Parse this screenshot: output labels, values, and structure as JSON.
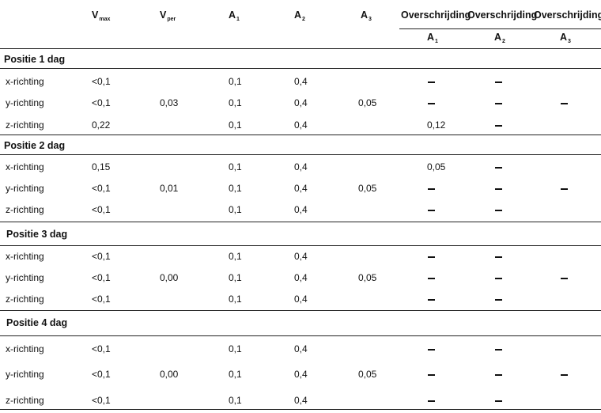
{
  "header": {
    "vmax": {
      "main": "V",
      "sub": "max"
    },
    "vper": {
      "main": "V",
      "sub": "per"
    },
    "a1": {
      "main": "A",
      "sub": "1"
    },
    "a2": {
      "main": "A",
      "sub": "2"
    },
    "a3": {
      "main": "A",
      "sub": "3"
    },
    "over1": "Overschrijding",
    "over2": "Overschrijding",
    "over3": "Overschrijding",
    "oa1": {
      "main": "A",
      "sub": "1"
    },
    "oa2": {
      "main": "A",
      "sub": "2"
    },
    "oa3": {
      "main": "A",
      "sub": "3"
    }
  },
  "sections": [
    {
      "title": "Positie 1 dag",
      "vper": "0,03",
      "a3": "0,05",
      "rows": [
        {
          "label": "x-richting",
          "vmax": "<0,1",
          "a1": "0,1",
          "a2": "0,4",
          "o1": "–",
          "o2": "–",
          "o3": ""
        },
        {
          "label": "y-richting",
          "vmax": "<0,1",
          "a1": "0,1",
          "a2": "0,4",
          "o1": "–",
          "o2": "–",
          "o3": "–"
        },
        {
          "label": "z-richting",
          "vmax": "0,22",
          "a1": "0,1",
          "a2": "0,4",
          "o1": "0,12",
          "o2": "–",
          "o3": ""
        }
      ]
    },
    {
      "title": "Positie 2 dag",
      "vper": "0,01",
      "a3": "0,05",
      "rows": [
        {
          "label": "x-richting",
          "vmax": "0,15",
          "a1": "0,1",
          "a2": "0,4",
          "o1": "0,05",
          "o2": "–",
          "o3": ""
        },
        {
          "label": "y-richting",
          "vmax": "<0,1",
          "a1": "0,1",
          "a2": "0,4",
          "o1": "–",
          "o2": "–",
          "o3": "–"
        },
        {
          "label": "z-richting",
          "vmax": "<0,1",
          "a1": "0,1",
          "a2": "0,4",
          "o1": "–",
          "o2": "–",
          "o3": ""
        }
      ]
    },
    {
      "title": "Positie 3 dag",
      "vper": "0,00",
      "a3": "0,05",
      "rows": [
        {
          "label": "x-richting",
          "vmax": "<0,1",
          "a1": "0,1",
          "a2": "0,4",
          "o1": "–",
          "o2": "–",
          "o3": ""
        },
        {
          "label": "y-richting",
          "vmax": "<0,1",
          "a1": "0,1",
          "a2": "0,4",
          "o1": "–",
          "o2": "–",
          "o3": "–"
        },
        {
          "label": "z-richting",
          "vmax": "<0,1",
          "a1": "0,1",
          "a2": "0,4",
          "o1": "–",
          "o2": "–",
          "o3": ""
        }
      ]
    },
    {
      "title": "Positie 4 dag",
      "vper": "0,00",
      "a3": "0,05",
      "rows": [
        {
          "label": "x-richting",
          "vmax": "<0,1",
          "a1": "0,1",
          "a2": "0,4",
          "o1": "–",
          "o2": "–",
          "o3": ""
        },
        {
          "label": "y-richting",
          "vmax": "<0,1",
          "a1": "0,1",
          "a2": "0,4",
          "o1": "–",
          "o2": "–",
          "o3": "–"
        },
        {
          "label": "z-richting",
          "vmax": "<0,1",
          "a1": "0,1",
          "a2": "0,4",
          "o1": "–",
          "o2": "–",
          "o3": ""
        }
      ]
    }
  ]
}
